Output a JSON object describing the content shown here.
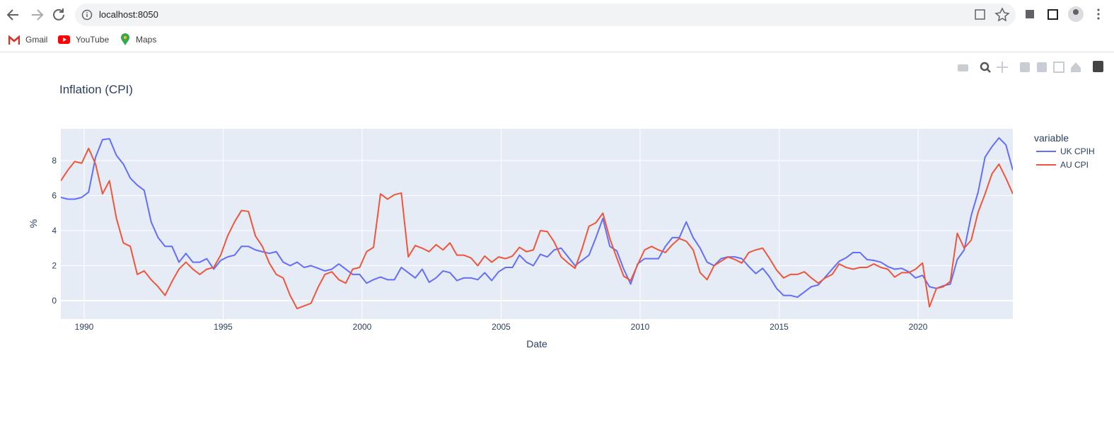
{
  "browser": {
    "url": "localhost:8050",
    "bookmarks": [
      "Gmail",
      "YouTube",
      "Maps"
    ]
  },
  "chart_data": {
    "type": "line",
    "title": "Inflation (CPI)",
    "x_label": "Date",
    "y_label": "%",
    "legend_title": "variable",
    "legend_position": "right",
    "grid": true,
    "xlim": [
      1989.16,
      2023.41
    ],
    "xticks": [
      1990,
      1995,
      2000,
      2005,
      2010,
      2015,
      2020
    ],
    "ylim": [
      -1.05,
      9.82
    ],
    "yticks": [
      0,
      2,
      4,
      6,
      8
    ],
    "x": [
      1989.16,
      1989.41,
      1989.66,
      1989.91,
      1990.16,
      1990.41,
      1990.66,
      1990.91,
      1991.16,
      1991.41,
      1991.66,
      1991.91,
      1992.16,
      1992.41,
      1992.66,
      1992.91,
      1993.16,
      1993.41,
      1993.66,
      1993.91,
      1994.16,
      1994.41,
      1994.66,
      1994.91,
      1995.16,
      1995.41,
      1995.66,
      1995.91,
      1996.16,
      1996.41,
      1996.66,
      1996.91,
      1997.16,
      1997.41,
      1997.66,
      1997.91,
      1998.16,
      1998.41,
      1998.66,
      1998.91,
      1999.16,
      1999.41,
      1999.66,
      1999.91,
      2000.16,
      2000.41,
      2000.66,
      2000.91,
      2001.16,
      2001.41,
      2001.66,
      2001.91,
      2002.16,
      2002.41,
      2002.66,
      2002.91,
      2003.16,
      2003.41,
      2003.66,
      2003.91,
      2004.16,
      2004.41,
      2004.66,
      2004.91,
      2005.16,
      2005.41,
      2005.66,
      2005.91,
      2006.16,
      2006.41,
      2006.66,
      2006.91,
      2007.16,
      2007.41,
      2007.66,
      2007.91,
      2008.16,
      2008.41,
      2008.66,
      2008.91,
      2009.16,
      2009.41,
      2009.66,
      2009.91,
      2010.16,
      2010.41,
      2010.66,
      2010.91,
      2011.16,
      2011.41,
      2011.66,
      2011.91,
      2012.16,
      2012.41,
      2012.66,
      2012.91,
      2013.16,
      2013.41,
      2013.66,
      2013.91,
      2014.16,
      2014.41,
      2014.66,
      2014.91,
      2015.16,
      2015.41,
      2015.66,
      2015.91,
      2016.16,
      2016.41,
      2016.66,
      2016.91,
      2017.16,
      2017.41,
      2017.66,
      2017.91,
      2018.16,
      2018.41,
      2018.66,
      2018.91,
      2019.16,
      2019.41,
      2019.66,
      2019.91,
      2020.16,
      2020.41,
      2020.66,
      2020.91,
      2021.16,
      2021.41,
      2021.66,
      2021.91,
      2022.16,
      2022.41,
      2022.66,
      2022.91,
      2023.16,
      2023.41
    ],
    "series": [
      {
        "name": "UK CPIH",
        "color": "#636efa",
        "values": [
          5.9,
          5.8,
          5.8,
          5.9,
          6.2,
          8.2,
          9.2,
          9.25,
          8.3,
          7.8,
          7.0,
          6.6,
          6.3,
          4.5,
          3.6,
          3.1,
          3.1,
          2.2,
          2.7,
          2.2,
          2.2,
          2.4,
          1.8,
          2.3,
          2.5,
          2.6,
          3.1,
          3.1,
          2.9,
          2.8,
          2.7,
          2.8,
          2.2,
          2.0,
          2.2,
          1.9,
          2.0,
          1.85,
          1.7,
          1.8,
          2.1,
          1.8,
          1.5,
          1.5,
          1.0,
          1.2,
          1.35,
          1.2,
          1.2,
          1.9,
          1.6,
          1.3,
          1.8,
          1.05,
          1.3,
          1.7,
          1.6,
          1.15,
          1.3,
          1.3,
          1.2,
          1.6,
          1.15,
          1.65,
          1.9,
          1.9,
          2.6,
          2.2,
          2.0,
          2.65,
          2.5,
          2.9,
          3.0,
          2.5,
          2.0,
          2.3,
          2.6,
          3.6,
          4.7,
          3.1,
          2.85,
          1.8,
          0.95,
          2.1,
          2.4,
          2.4,
          2.4,
          3.1,
          3.6,
          3.6,
          4.5,
          3.6,
          3.0,
          2.2,
          2.0,
          2.4,
          2.5,
          2.5,
          2.4,
          1.95,
          1.55,
          1.85,
          1.35,
          0.7,
          0.3,
          0.3,
          0.2,
          0.5,
          0.8,
          0.9,
          1.35,
          1.8,
          2.25,
          2.45,
          2.75,
          2.75,
          2.35,
          2.3,
          2.2,
          1.95,
          1.8,
          1.85,
          1.65,
          1.3,
          1.45,
          0.8,
          0.7,
          0.85,
          0.95,
          2.35,
          2.9,
          4.85,
          6.2,
          8.2,
          8.8,
          9.3,
          8.9,
          7.45
        ]
      },
      {
        "name": "AU CPI",
        "color": "#EF553B",
        "values": [
          6.85,
          7.45,
          7.95,
          7.85,
          8.7,
          7.8,
          6.1,
          6.85,
          4.7,
          3.3,
          3.1,
          1.5,
          1.7,
          1.2,
          0.8,
          0.3,
          1.1,
          1.8,
          2.2,
          1.8,
          1.5,
          1.8,
          1.9,
          2.6,
          3.7,
          4.5,
          5.15,
          5.1,
          3.7,
          3.1,
          2.15,
          1.5,
          1.3,
          0.3,
          -0.45,
          -0.3,
          -0.15,
          0.75,
          1.5,
          1.65,
          1.2,
          1.0,
          1.8,
          1.9,
          2.8,
          3.05,
          6.1,
          5.8,
          6.05,
          6.15,
          2.5,
          3.15,
          3.0,
          2.8,
          3.2,
          2.9,
          3.3,
          2.6,
          2.6,
          2.45,
          2.0,
          2.55,
          2.2,
          2.5,
          2.4,
          2.55,
          3.05,
          2.8,
          2.9,
          4.0,
          3.95,
          3.35,
          2.5,
          2.15,
          1.85,
          2.95,
          4.25,
          4.45,
          5.0,
          3.55,
          2.45,
          1.4,
          1.15,
          2.05,
          2.9,
          3.1,
          2.9,
          2.75,
          3.2,
          3.55,
          3.4,
          2.9,
          1.6,
          1.2,
          2.0,
          2.25,
          2.5,
          2.35,
          2.15,
          2.75,
          2.9,
          3.0,
          2.4,
          1.75,
          1.3,
          1.5,
          1.5,
          1.65,
          1.3,
          1.0,
          1.3,
          1.5,
          2.1,
          1.9,
          1.8,
          1.9,
          1.9,
          2.1,
          1.9,
          1.8,
          1.35,
          1.6,
          1.6,
          1.8,
          2.15,
          -0.35,
          0.7,
          0.8,
          1.1,
          3.85,
          3.0,
          3.45,
          5.05,
          6.1,
          7.25,
          7.8,
          7.0,
          6.1
        ]
      }
    ]
  }
}
